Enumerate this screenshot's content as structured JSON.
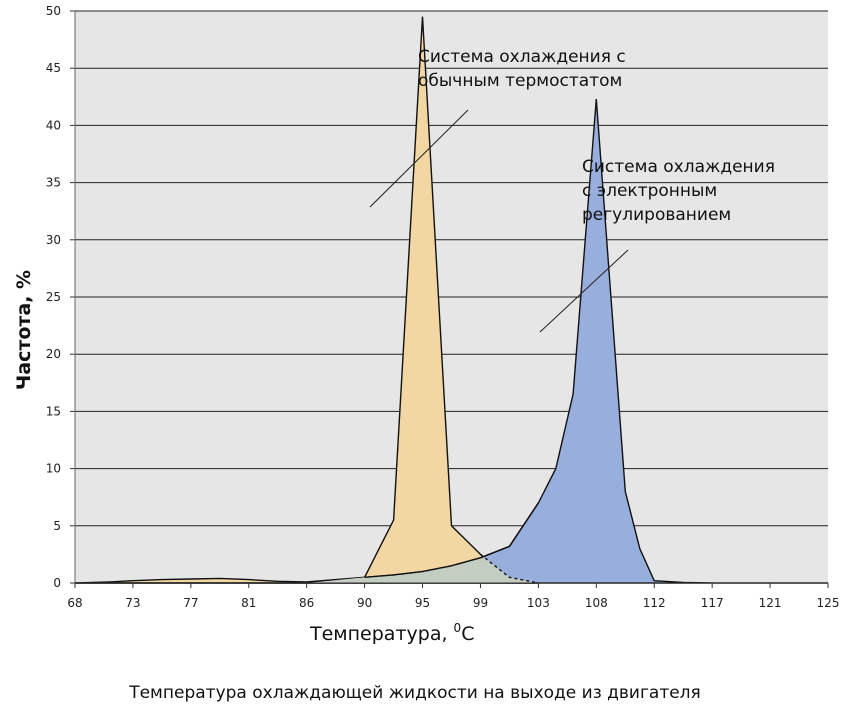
{
  "chart_data": {
    "type": "area",
    "caption": "Температура охлаждающей жидкости на выходе из двигателя",
    "xlabel_main": "Температура, ",
    "xlabel_sup": "0",
    "xlabel_unit": "С",
    "ylabel": "Частота, %",
    "ylim": [
      0,
      50
    ],
    "y_ticks": [
      0,
      5,
      10,
      15,
      20,
      25,
      30,
      35,
      40,
      45,
      50
    ],
    "x_ticks": [
      "68",
      "73",
      "77",
      "81",
      "86",
      "90",
      "95",
      "99",
      "103",
      "108",
      "112",
      "117",
      "121",
      "125"
    ],
    "grid": true,
    "colors": {
      "background": "#e6e6e6",
      "grid": "#222222",
      "conventional_fill": "#f2d7a2",
      "electronic_fill": "#98afde",
      "overlap_fill": "#c4cdc1",
      "outline": "#111111"
    },
    "series": [
      {
        "x_index": [
          0,
          0.6,
          1,
          1.5,
          2,
          2.5,
          3,
          3.5,
          4,
          4.5,
          5,
          5.5,
          6,
          6.5,
          7,
          7.5,
          8
        ],
        "values": [
          0,
          0.1,
          0.2,
          0.3,
          0.35,
          0.4,
          0.3,
          0.15,
          0.1,
          0.3,
          0.5,
          5.5,
          49.5,
          5.0,
          2.5,
          0.5,
          0
        ]
      },
      {
        "x_index": [
          0,
          1,
          2,
          3,
          4,
          5,
          5.5,
          6,
          6.5,
          7,
          7.5,
          8,
          8.3,
          8.6,
          9,
          9.5,
          9.75,
          10,
          10.5,
          11,
          12,
          13
        ],
        "values": [
          0,
          0,
          0,
          0,
          0,
          0.5,
          0.7,
          1.0,
          1.5,
          2.2,
          3.2,
          7.0,
          10.0,
          16.5,
          42.3,
          8.0,
          3.0,
          0.2,
          0.05,
          0,
          0,
          0
        ]
      }
    ],
    "annotations": [
      {
        "lines": [
          "Система охлаждения с",
          "обычным термостатом"
        ]
      },
      {
        "lines": [
          "Система охлаждения",
          "с электронным",
          "регулированием"
        ]
      }
    ]
  }
}
